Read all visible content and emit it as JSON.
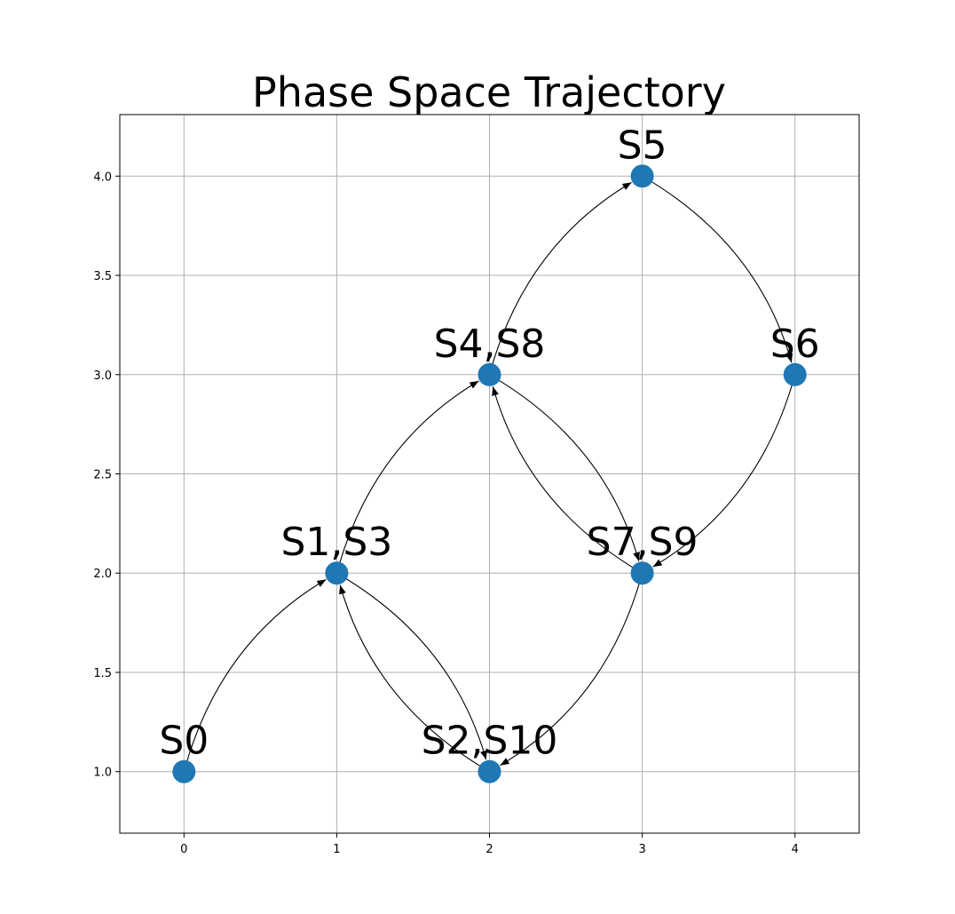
{
  "chart_data": {
    "type": "scatter",
    "title": "Phase Space Trajectory",
    "xlabel": "",
    "ylabel": "",
    "xlim": [
      -0.42,
      4.42
    ],
    "ylim": [
      0.69,
      4.31
    ],
    "x_ticks": [
      "0",
      "1",
      "2",
      "3",
      "4"
    ],
    "y_ticks": [
      "1.0",
      "1.5",
      "2.0",
      "2.5",
      "3.0",
      "3.5",
      "4.0"
    ],
    "grid": true,
    "node_color": "#1f77b4",
    "edge_color": "#000000",
    "nodes": [
      {
        "id": "n0",
        "label": "S0",
        "x": 0,
        "y": 1
      },
      {
        "id": "n1",
        "label": "S1,S3",
        "x": 1,
        "y": 2
      },
      {
        "id": "n2",
        "label": "S2,S10",
        "x": 2,
        "y": 1
      },
      {
        "id": "n3",
        "label": "S4,S8",
        "x": 2,
        "y": 3
      },
      {
        "id": "n4",
        "label": "S5",
        "x": 3,
        "y": 4
      },
      {
        "id": "n5",
        "label": "S6",
        "x": 4,
        "y": 3
      },
      {
        "id": "n6",
        "label": "S7,S9",
        "x": 3,
        "y": 2
      }
    ],
    "edges": [
      {
        "from": "n0",
        "to": "n1"
      },
      {
        "from": "n1",
        "to": "n2"
      },
      {
        "from": "n2",
        "to": "n1"
      },
      {
        "from": "n1",
        "to": "n3"
      },
      {
        "from": "n3",
        "to": "n4"
      },
      {
        "from": "n4",
        "to": "n5"
      },
      {
        "from": "n5",
        "to": "n6"
      },
      {
        "from": "n6",
        "to": "n3"
      },
      {
        "from": "n3",
        "to": "n6"
      },
      {
        "from": "n6",
        "to": "n2"
      }
    ]
  }
}
